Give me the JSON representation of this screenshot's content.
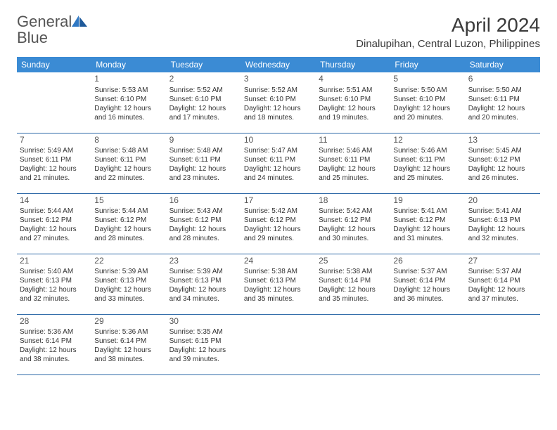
{
  "logo": {
    "text1": "General",
    "text2": "Blue"
  },
  "title": "April 2024",
  "location": "Dinalupihan, Central Luzon, Philippines",
  "colors": {
    "header_bg": "#3b8bd4",
    "header_text": "#ffffff",
    "border": "#2f6aa8",
    "logo_gray": "#555555",
    "logo_blue": "#2f78c4",
    "body_text": "#333333",
    "background": "#ffffff"
  },
  "typography": {
    "title_fontsize": 28,
    "location_fontsize": 15,
    "dayheader_fontsize": 12,
    "daynum_fontsize": 12,
    "detail_fontsize": 10
  },
  "day_headers": [
    "Sunday",
    "Monday",
    "Tuesday",
    "Wednesday",
    "Thursday",
    "Friday",
    "Saturday"
  ],
  "weeks": [
    [
      null,
      {
        "n": "1",
        "sr": "5:53 AM",
        "ss": "6:10 PM",
        "dl": "12 hours and 16 minutes."
      },
      {
        "n": "2",
        "sr": "5:52 AM",
        "ss": "6:10 PM",
        "dl": "12 hours and 17 minutes."
      },
      {
        "n": "3",
        "sr": "5:52 AM",
        "ss": "6:10 PM",
        "dl": "12 hours and 18 minutes."
      },
      {
        "n": "4",
        "sr": "5:51 AM",
        "ss": "6:10 PM",
        "dl": "12 hours and 19 minutes."
      },
      {
        "n": "5",
        "sr": "5:50 AM",
        "ss": "6:10 PM",
        "dl": "12 hours and 20 minutes."
      },
      {
        "n": "6",
        "sr": "5:50 AM",
        "ss": "6:11 PM",
        "dl": "12 hours and 20 minutes."
      }
    ],
    [
      {
        "n": "7",
        "sr": "5:49 AM",
        "ss": "6:11 PM",
        "dl": "12 hours and 21 minutes."
      },
      {
        "n": "8",
        "sr": "5:48 AM",
        "ss": "6:11 PM",
        "dl": "12 hours and 22 minutes."
      },
      {
        "n": "9",
        "sr": "5:48 AM",
        "ss": "6:11 PM",
        "dl": "12 hours and 23 minutes."
      },
      {
        "n": "10",
        "sr": "5:47 AM",
        "ss": "6:11 PM",
        "dl": "12 hours and 24 minutes."
      },
      {
        "n": "11",
        "sr": "5:46 AM",
        "ss": "6:11 PM",
        "dl": "12 hours and 25 minutes."
      },
      {
        "n": "12",
        "sr": "5:46 AM",
        "ss": "6:11 PM",
        "dl": "12 hours and 25 minutes."
      },
      {
        "n": "13",
        "sr": "5:45 AM",
        "ss": "6:12 PM",
        "dl": "12 hours and 26 minutes."
      }
    ],
    [
      {
        "n": "14",
        "sr": "5:44 AM",
        "ss": "6:12 PM",
        "dl": "12 hours and 27 minutes."
      },
      {
        "n": "15",
        "sr": "5:44 AM",
        "ss": "6:12 PM",
        "dl": "12 hours and 28 minutes."
      },
      {
        "n": "16",
        "sr": "5:43 AM",
        "ss": "6:12 PM",
        "dl": "12 hours and 28 minutes."
      },
      {
        "n": "17",
        "sr": "5:42 AM",
        "ss": "6:12 PM",
        "dl": "12 hours and 29 minutes."
      },
      {
        "n": "18",
        "sr": "5:42 AM",
        "ss": "6:12 PM",
        "dl": "12 hours and 30 minutes."
      },
      {
        "n": "19",
        "sr": "5:41 AM",
        "ss": "6:12 PM",
        "dl": "12 hours and 31 minutes."
      },
      {
        "n": "20",
        "sr": "5:41 AM",
        "ss": "6:13 PM",
        "dl": "12 hours and 32 minutes."
      }
    ],
    [
      {
        "n": "21",
        "sr": "5:40 AM",
        "ss": "6:13 PM",
        "dl": "12 hours and 32 minutes."
      },
      {
        "n": "22",
        "sr": "5:39 AM",
        "ss": "6:13 PM",
        "dl": "12 hours and 33 minutes."
      },
      {
        "n": "23",
        "sr": "5:39 AM",
        "ss": "6:13 PM",
        "dl": "12 hours and 34 minutes."
      },
      {
        "n": "24",
        "sr": "5:38 AM",
        "ss": "6:13 PM",
        "dl": "12 hours and 35 minutes."
      },
      {
        "n": "25",
        "sr": "5:38 AM",
        "ss": "6:14 PM",
        "dl": "12 hours and 35 minutes."
      },
      {
        "n": "26",
        "sr": "5:37 AM",
        "ss": "6:14 PM",
        "dl": "12 hours and 36 minutes."
      },
      {
        "n": "27",
        "sr": "5:37 AM",
        "ss": "6:14 PM",
        "dl": "12 hours and 37 minutes."
      }
    ],
    [
      {
        "n": "28",
        "sr": "5:36 AM",
        "ss": "6:14 PM",
        "dl": "12 hours and 38 minutes."
      },
      {
        "n": "29",
        "sr": "5:36 AM",
        "ss": "6:14 PM",
        "dl": "12 hours and 38 minutes."
      },
      {
        "n": "30",
        "sr": "5:35 AM",
        "ss": "6:15 PM",
        "dl": "12 hours and 39 minutes."
      },
      null,
      null,
      null,
      null
    ]
  ],
  "labels": {
    "sunrise": "Sunrise:",
    "sunset": "Sunset:",
    "daylight": "Daylight:"
  }
}
